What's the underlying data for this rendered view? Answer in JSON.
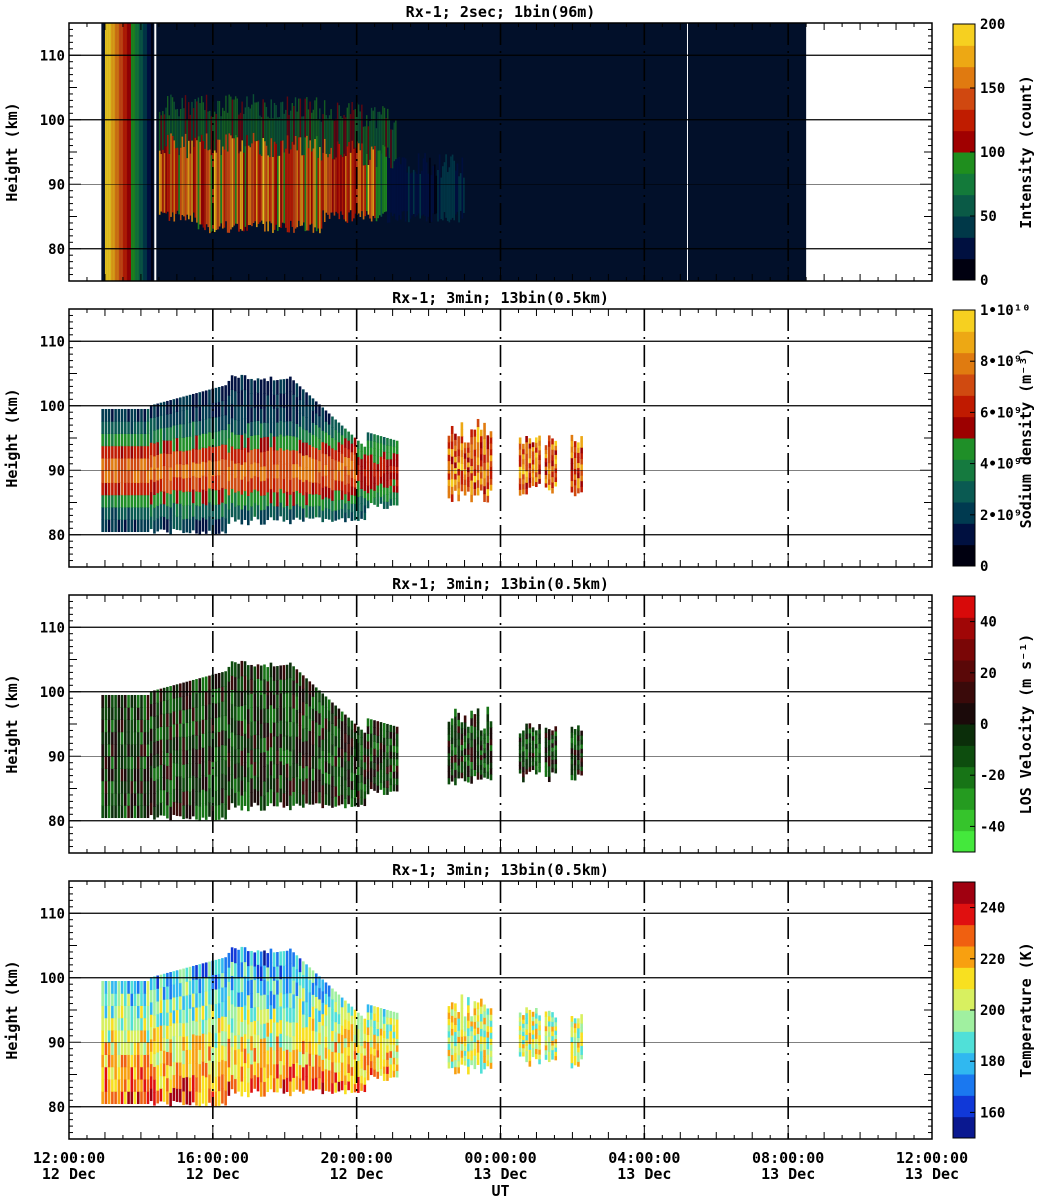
{
  "chart_data": [
    {
      "type": "heatmap",
      "title": "Rx-1;  2sec; 1bin(96m)",
      "ylabel": "Height (km)",
      "ylim": [
        75,
        115
      ],
      "yticks": [
        80,
        90,
        100,
        110
      ],
      "colorbar": {
        "label": "Intensity (count)",
        "range": [
          0,
          200
        ],
        "ticks": [
          "0",
          "50",
          "100",
          "150",
          "200"
        ],
        "colors": [
          "#000010",
          "#001040",
          "#003848",
          "#0a5a46",
          "#137a3a",
          "#1f8e1e",
          "#a00000",
          "#c01c00",
          "#d04810",
          "#e07a10",
          "#eda814",
          "#f6d020"
        ]
      },
      "background": "#02102a",
      "data_span": [
        "12:20",
        "21:00"
      ]
    },
    {
      "type": "heatmap",
      "title": "Rx-1; 3min; 13bin(0.5km)",
      "ylabel": "Height (km)",
      "ylim": [
        75,
        115
      ],
      "yticks": [
        80,
        90,
        100,
        110
      ],
      "colorbar": {
        "label": "Sodium density (m⁻³)",
        "range": [
          0,
          10000000000
        ],
        "ticks": [
          "0",
          "2•10⁹",
          "4•10⁹",
          "6•10⁹",
          "8•10⁹",
          "1•10¹⁰"
        ],
        "colors": [
          "#000010",
          "#001040",
          "#003a50",
          "#0a5a52",
          "#157a3f",
          "#1f8f28",
          "#9c0000",
          "#c01a00",
          "#d04a10",
          "#e07b10",
          "#eda814",
          "#f6d020"
        ]
      }
    },
    {
      "type": "heatmap",
      "title": "Rx-1; 3min; 13bin(0.5km)",
      "ylabel": "Height (km)",
      "ylim": [
        75,
        115
      ],
      "yticks": [
        80,
        90,
        100,
        110
      ],
      "colorbar": {
        "label": "LOS Velocity (m s⁻¹)",
        "range": [
          -50,
          50
        ],
        "ticks": [
          "-40",
          "-20",
          "0",
          "20",
          "40"
        ],
        "colors": [
          "#44e83c",
          "#36c42c",
          "#259b20",
          "#177416",
          "#0d4d0e",
          "#0b2e0a",
          "#1b0a0a",
          "#3a0a0a",
          "#5a0808",
          "#7a0606",
          "#a00606",
          "#d80a0a"
        ]
      }
    },
    {
      "type": "heatmap",
      "title": "Rx-1; 3min; 13bin(0.5km)",
      "ylabel": "Height (km)",
      "ylim": [
        75,
        115
      ],
      "yticks": [
        80,
        90,
        100,
        110
      ],
      "colorbar": {
        "label": "Temperature (K)",
        "range": [
          150,
          250
        ],
        "ticks": [
          "160",
          "180",
          "200",
          "220",
          "240"
        ],
        "colors": [
          "#0a1890",
          "#1038d8",
          "#1a78f0",
          "#30b8f0",
          "#50e0d8",
          "#a0f0a0",
          "#d8f060",
          "#f8e020",
          "#f8a010",
          "#f06010",
          "#e01010",
          "#a00010"
        ]
      },
      "xlabel": "UT",
      "xlim": [
        "12 Dec 12:00:00",
        "13 Dec 12:00:00"
      ],
      "xticks": [
        {
          "time": "12:00:00",
          "day": "12 Dec"
        },
        {
          "time": "16:00:00",
          "day": "12 Dec"
        },
        {
          "time": "20:00:00",
          "day": "12 Dec"
        },
        {
          "time": "00:00:00",
          "day": "13 Dec"
        },
        {
          "time": "04:00:00",
          "day": "13 Dec"
        },
        {
          "time": "08:00:00",
          "day": "13 Dec"
        },
        {
          "time": "12:00:00",
          "day": "13 Dec"
        }
      ]
    }
  ]
}
